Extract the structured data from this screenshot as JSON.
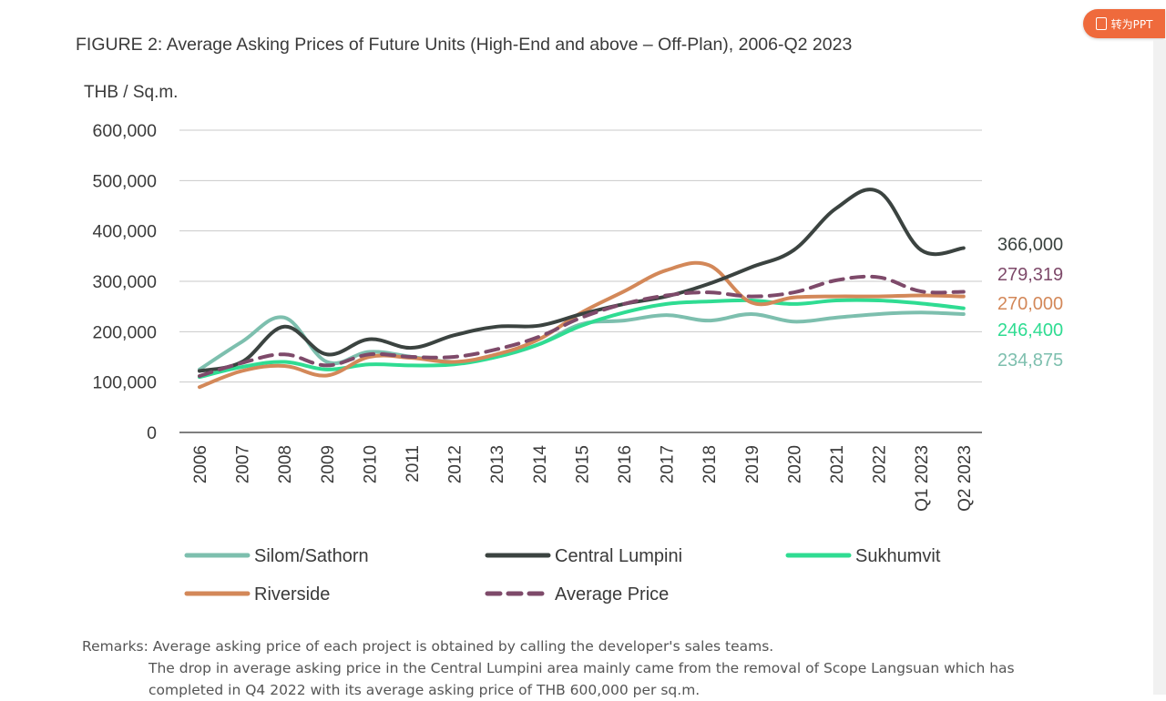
{
  "title": "FIGURE 2: Average Asking Prices of Future Units (High-End and above – Off-Plan), 2006-Q2 2023",
  "toolbar": {
    "ppt_label": "转为PPT"
  },
  "remarks": {
    "label": "Remarks:",
    "line1": "Average asking price of each project is obtained by calling the developer's sales teams.",
    "line2": "The drop in average asking price in the Central Lumpini area mainly came from the removal of Scope Langsuan which has",
    "line3": "completed in Q4 2022 with its average asking price of THB 600,000 per sq.m."
  },
  "chart_data": {
    "type": "line",
    "title": "FIGURE 2: Average Asking Prices of Future Units (High-End and above – Off-Plan), 2006-Q2 2023",
    "ylabel": "THB / Sq.m.",
    "xlabel": "",
    "ylim": [
      0,
      600000
    ],
    "yticks": [
      0,
      100000,
      200000,
      300000,
      400000,
      500000,
      600000
    ],
    "ytick_labels": [
      "0",
      "100,000",
      "200,000",
      "300,000",
      "400,000",
      "500,000",
      "600,000"
    ],
    "categories": [
      "2006",
      "2007",
      "2008",
      "2009",
      "2010",
      "2011",
      "2012",
      "2013",
      "2014",
      "2015",
      "2016",
      "2017",
      "2018",
      "2019",
      "2020",
      "2021",
      "2022",
      "Q1 2023",
      "Q2 2023"
    ],
    "series": [
      {
        "name": "Silom/Sathorn",
        "color": "#7dbfae",
        "dash": false,
        "values": [
          125000,
          180000,
          228000,
          140000,
          160000,
          150000,
          140000,
          150000,
          175000,
          215000,
          222000,
          233000,
          222000,
          235000,
          220000,
          228000,
          235000,
          238000,
          234875
        ],
        "end_label": "234,875"
      },
      {
        "name": "Central Lumpini",
        "color": "#3b4340",
        "dash": false,
        "values": [
          122000,
          140000,
          210000,
          155000,
          185000,
          168000,
          193000,
          210000,
          212000,
          235000,
          255000,
          270000,
          295000,
          328000,
          362000,
          445000,
          478000,
          362000,
          366000
        ],
        "end_label": "366,000"
      },
      {
        "name": "Sukhumvit",
        "color": "#2fdc92",
        "dash": false,
        "values": [
          110000,
          130000,
          140000,
          125000,
          135000,
          133000,
          135000,
          150000,
          175000,
          212000,
          238000,
          255000,
          260000,
          262000,
          255000,
          262000,
          262000,
          256000,
          246400
        ],
        "end_label": "246,400"
      },
      {
        "name": "Riverside",
        "color": "#d38859",
        "dash": false,
        "values": [
          90000,
          122000,
          132000,
          113000,
          150000,
          148000,
          140000,
          155000,
          185000,
          238000,
          280000,
          322000,
          332000,
          258000,
          268000,
          270000,
          270000,
          272000,
          270000
        ],
        "end_label": "270,000"
      },
      {
        "name": "Average Price",
        "color": "#7e4a6a",
        "dash": true,
        "values": [
          112000,
          138000,
          155000,
          133000,
          155000,
          150000,
          150000,
          165000,
          190000,
          228000,
          255000,
          272000,
          278000,
          270000,
          278000,
          302000,
          308000,
          280000,
          279319
        ],
        "end_label": "279,319"
      }
    ],
    "legend": {
      "position": "bottom"
    }
  }
}
